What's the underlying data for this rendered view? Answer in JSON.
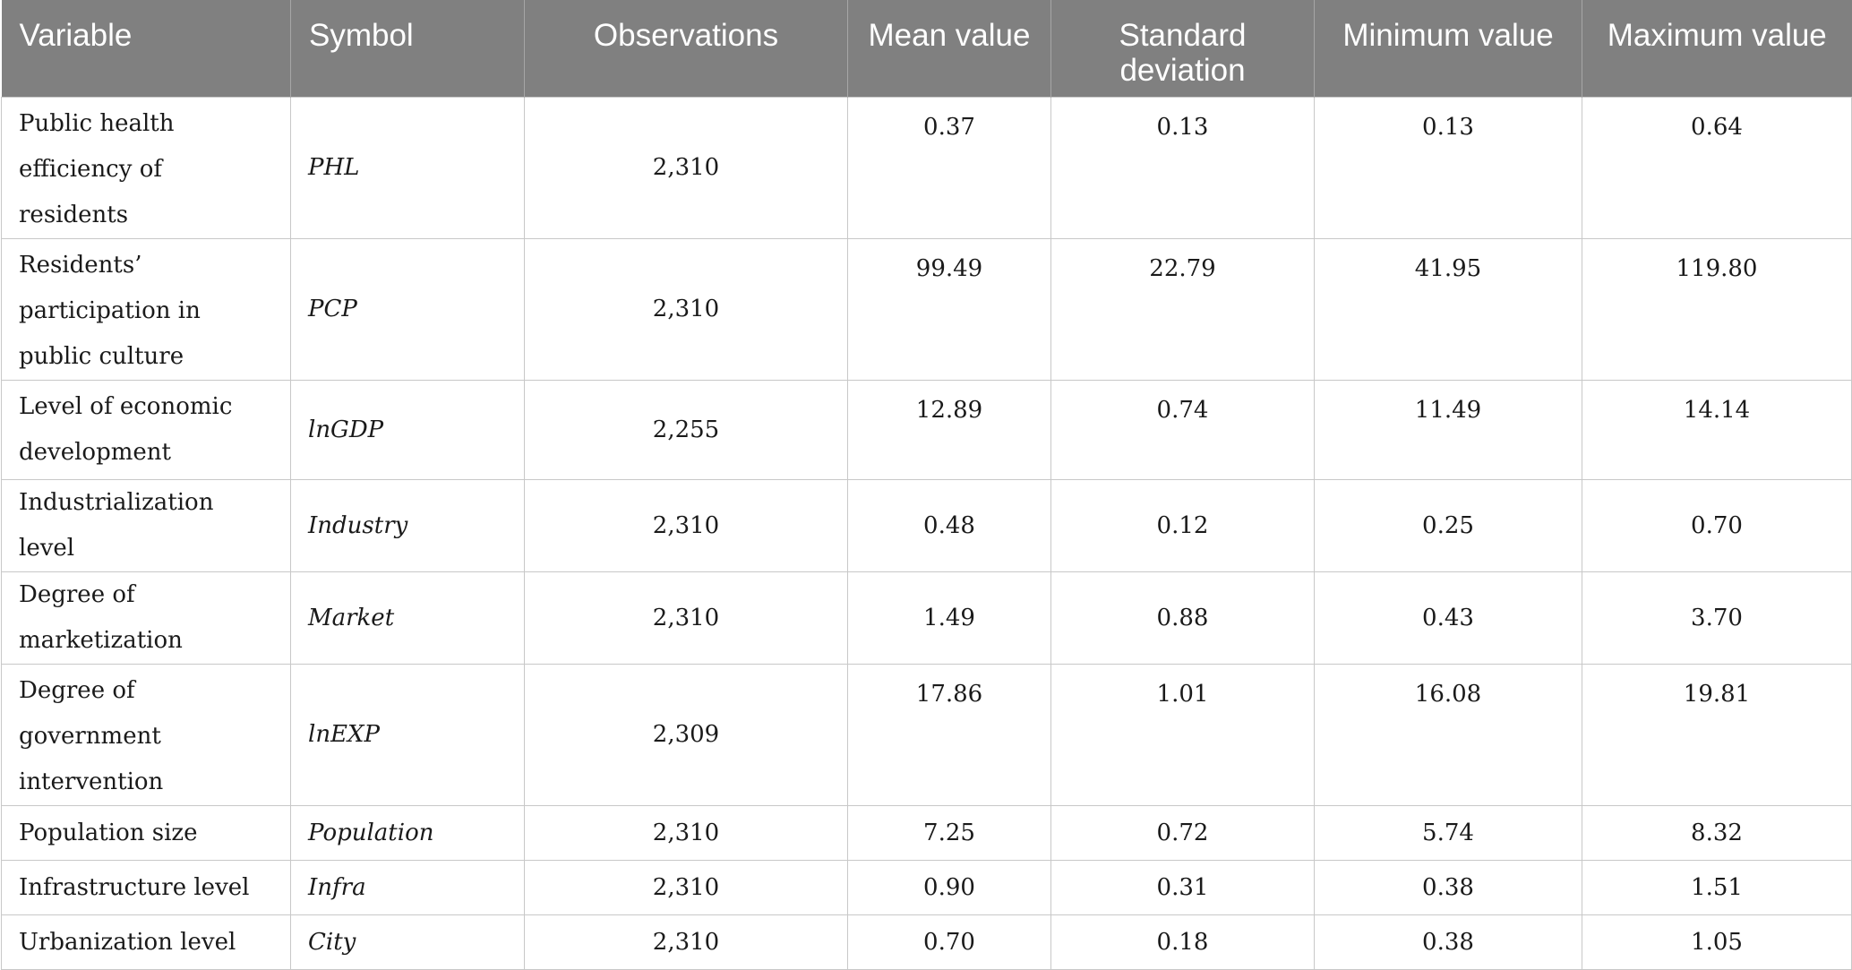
{
  "table": {
    "headers": [
      "Variable",
      "Symbol",
      "Observations",
      "Mean value",
      "Standard deviation",
      "Minimum value",
      "Maximum value"
    ],
    "rows": [
      {
        "variable": "Public health efficiency of residents",
        "symbol": "PHL",
        "observations": "2,310",
        "mean": "0.37",
        "sd": "0.13",
        "min": "0.13",
        "max": "0.64"
      },
      {
        "variable": "Residents’ participation in public culture",
        "symbol": "PCP",
        "observations": "2,310",
        "mean": "99.49",
        "sd": "22.79",
        "min": "41.95",
        "max": "119.80"
      },
      {
        "variable": "Level of economic development",
        "symbol": "lnGDP",
        "observations": "2,255",
        "mean": "12.89",
        "sd": "0.74",
        "min": "11.49",
        "max": "14.14"
      },
      {
        "variable": "Industrialization level",
        "symbol": "Industry",
        "observations": "2,310",
        "mean": "0.48",
        "sd": "0.12",
        "min": "0.25",
        "max": "0.70"
      },
      {
        "variable": "Degree of marketization",
        "symbol": "Market",
        "observations": "2,310",
        "mean": "1.49",
        "sd": "0.88",
        "min": "0.43",
        "max": "3.70"
      },
      {
        "variable": "Degree of government intervention",
        "symbol": "lnEXP",
        "observations": "2,309",
        "mean": "17.86",
        "sd": "1.01",
        "min": "16.08",
        "max": "19.81"
      },
      {
        "variable": "Population size",
        "symbol": "Population",
        "observations": "2,310",
        "mean": "7.25",
        "sd": "0.72",
        "min": "5.74",
        "max": "8.32"
      },
      {
        "variable": "Infrastructure level",
        "symbol": "Infra",
        "observations": "2,310",
        "mean": "0.90",
        "sd": "0.31",
        "min": "0.38",
        "max": "1.51"
      },
      {
        "variable": "Urbanization level",
        "symbol": "City",
        "observations": "2,310",
        "mean": "0.70",
        "sd": "0.18",
        "min": "0.38",
        "max": "1.05"
      }
    ]
  },
  "colors": {
    "header_bg": "#808080",
    "header_text": "#ffffff",
    "grid": "#c8c8c8"
  }
}
